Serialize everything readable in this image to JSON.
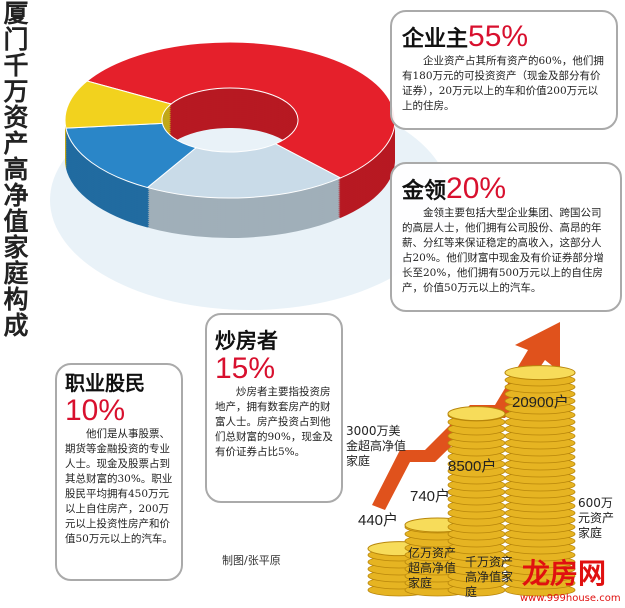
{
  "title": "厦门千万资产高净值家庭构成",
  "colors": {
    "red": "#e5202b",
    "light_blue": "#c9dbe8",
    "blue": "#2a86c8",
    "yellow": "#f2d21e",
    "accent": "#d8102e",
    "coin": "#e6b422",
    "arrow": "#e0521c"
  },
  "groups": [
    {
      "name": "企业主",
      "percent": "55%",
      "desc": "企业资产占其所有资产的60%，他们拥有180万元的可投资资产（现金及部分有价证券），20万元以上的车和价值200万元以上的住房。"
    },
    {
      "name": "金领",
      "percent": "20%",
      "desc": "金领主要包括大型企业集团、跨国公司的高层人士，他们拥有公司股份、高昂的年薪、分红等来保证稳定的高收入，这部分人占20%。他们财富中现金及有价证券部分增长至20%，他们拥有500万元以上的自住房产，价值50万元以上的汽车。"
    },
    {
      "name": "炒房者",
      "percent": "15%",
      "desc": "炒房者主要指投资房地产，拥有数套房产的财富人士。房产投资占到他们总财富的90%，现金及有价证券占比5%。"
    },
    {
      "name": "职业股民",
      "percent": "10%",
      "desc": "他们是从事股票、期货等金融投资的专业人士。现金及股票占到其总财富的30%。职业股民平均拥有450万元以上自住房产，200万元以上投资性房产和价值50万元以上的汽车。"
    }
  ],
  "credit": "制图/张平原",
  "watermark": {
    "logo": "龙房网",
    "url": "www.999house.com"
  },
  "chart_data": [
    {
      "type": "pie",
      "variant": "3d-donut",
      "categories": [
        "企业主",
        "金领",
        "炒房者",
        "职业股民"
      ],
      "values": [
        55,
        20,
        15,
        10
      ],
      "colors": [
        "#e5202b",
        "#c9dbe8",
        "#2a86c8",
        "#f2d21e"
      ]
    },
    {
      "type": "bar",
      "variant": "coin-stacks",
      "categories": [
        "3000万美金超高净值家庭",
        "亿万资产超高净值家庭",
        "千万资产高净值家庭",
        "600万元资产家庭"
      ],
      "values": [
        440,
        740,
        8500,
        20900
      ],
      "value_labels": [
        "440户",
        "740户",
        "8500户",
        "20900户"
      ]
    }
  ]
}
